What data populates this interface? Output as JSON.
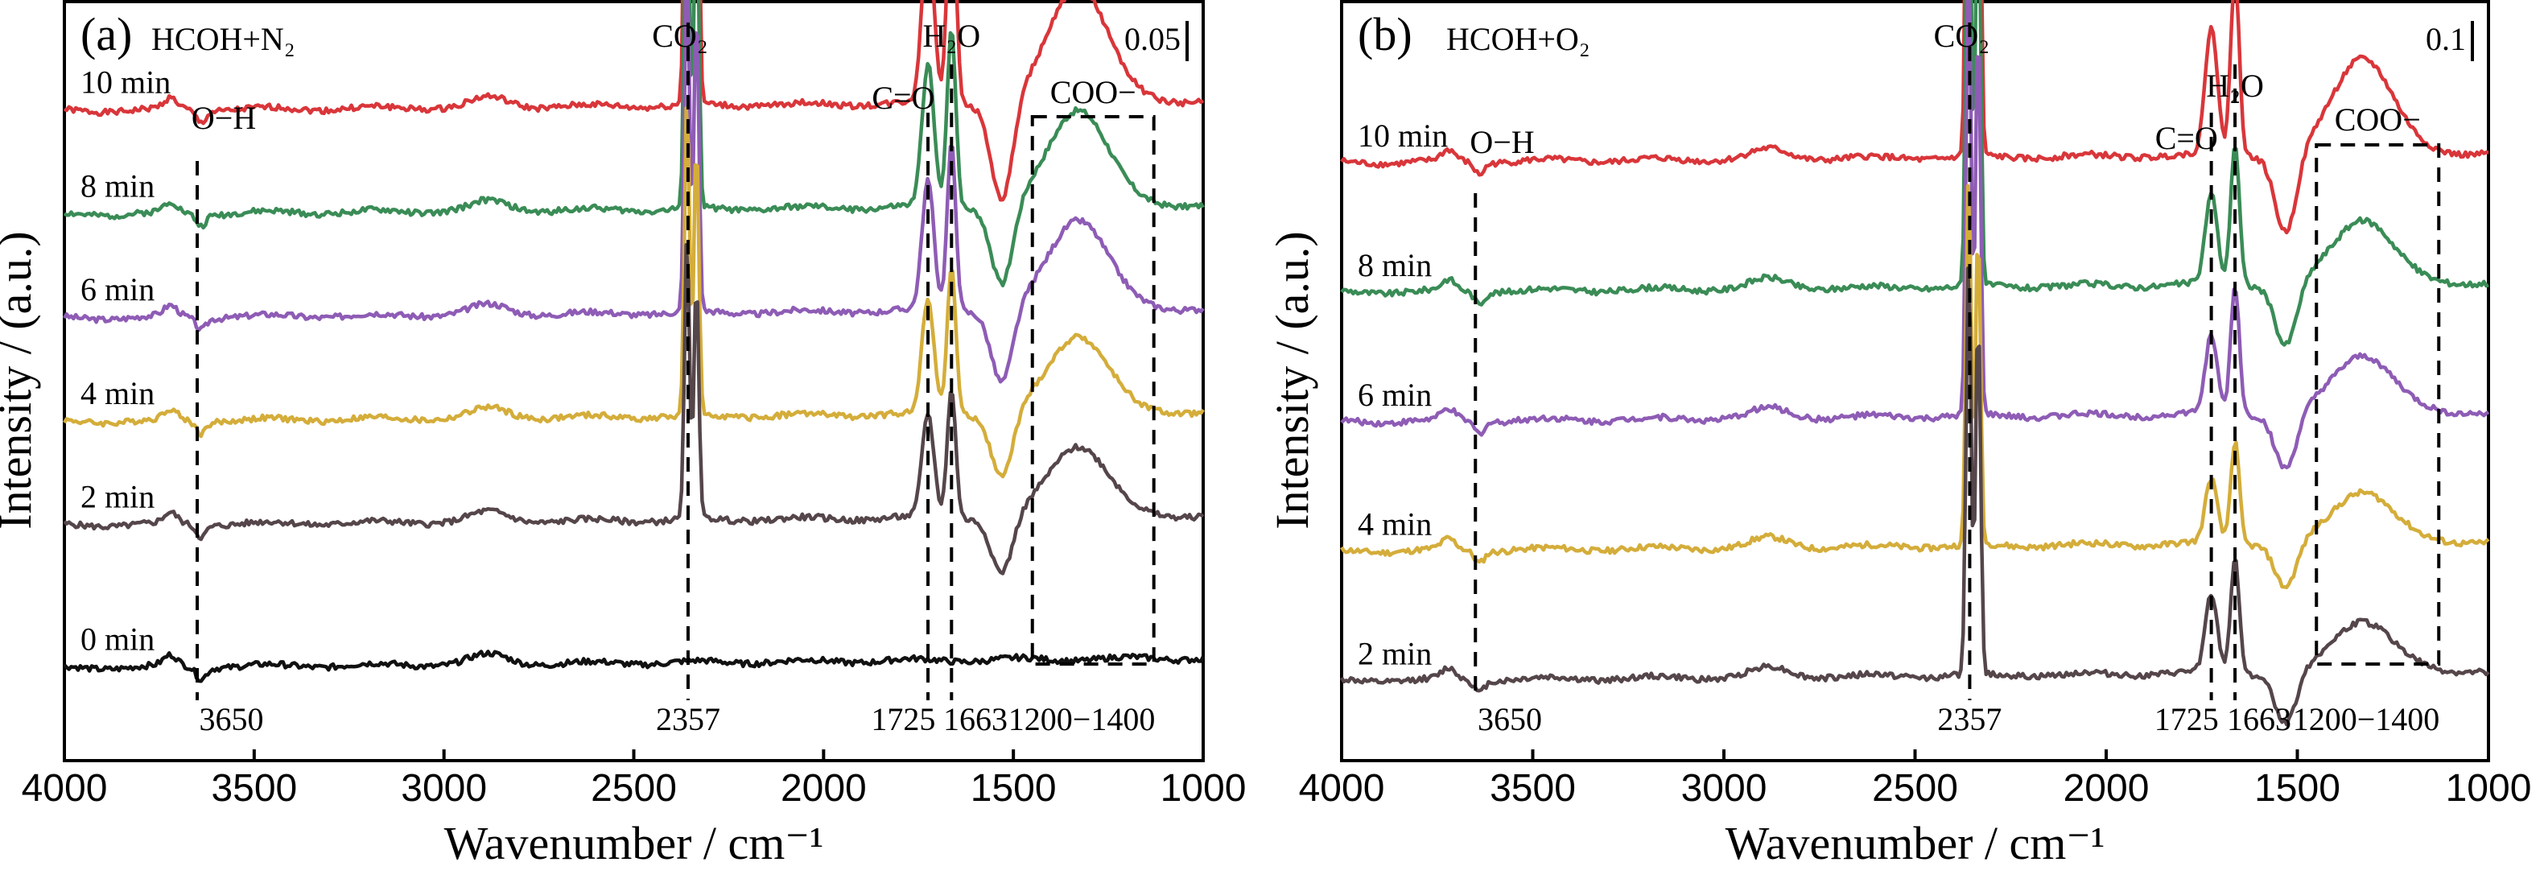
{
  "chart_data": [
    {
      "type": "line",
      "panel_label": "(a)",
      "condition": "HCOH+N₂",
      "scale_bar": "0.05",
      "xlabel": "Wavenumber / cm⁻¹",
      "ylabel": "Intensity / (a.u.)",
      "xlim": [
        4000,
        1000
      ],
      "x_reversed": true,
      "xticks": [
        "4000",
        "3500",
        "3000",
        "2500",
        "2000",
        "1500",
        "1000"
      ],
      "series": [
        {
          "name": "10 min",
          "color": "#d9363a",
          "baseline": 96,
          "peaks": {
            "2357": 68,
            "1725": 26,
            "1663": 35,
            "1300": 18
          }
        },
        {
          "name": "8 min",
          "color": "#3a8c56",
          "baseline": 80,
          "peaks": {
            "2357": 60,
            "1725": 22,
            "1663": 28,
            "1300": 15
          }
        },
        {
          "name": "6 min",
          "color": "#8e5cb5",
          "baseline": 64,
          "peaks": {
            "2357": 56,
            "1725": 20,
            "1663": 26,
            "1300": 14
          }
        },
        {
          "name": "4 min",
          "color": "#d4ad3a",
          "baseline": 48,
          "peaks": {
            "2357": 50,
            "1725": 18,
            "1663": 23,
            "1300": 12
          }
        },
        {
          "name": "2 min",
          "color": "#55464a",
          "baseline": 32,
          "peaks": {
            "2357": 44,
            "1725": 16,
            "1663": 20,
            "1300": 11
          }
        },
        {
          "name": "0 min",
          "color": "#111111",
          "baseline": 10,
          "peaks": {
            "2357": 0,
            "1725": 0,
            "1663": 0,
            "1300": 0
          }
        }
      ],
      "annotations": {
        "bands": [
          "O−H",
          "CO₂",
          "C=O",
          "H₂O",
          "COO−"
        ],
        "positions": [
          "3650",
          "2357",
          "1725",
          "1663",
          "1200−1400"
        ]
      }
    },
    {
      "type": "line",
      "panel_label": "(b)",
      "condition": "HCOH+O₂",
      "scale_bar": "0.1",
      "xlabel": "Wavenumber / cm⁻¹",
      "ylabel": "Intensity / (a.u.)",
      "xlim": [
        4000,
        1000
      ],
      "x_reversed": true,
      "xticks": [
        "4000",
        "3500",
        "3000",
        "2500",
        "2000",
        "1500",
        "1000"
      ],
      "series": [
        {
          "name": "10 min",
          "color": "#d9363a",
          "baseline": 88,
          "peaks": {
            "2357": 85,
            "1725": 20,
            "1663": 28,
            "1300": 15
          }
        },
        {
          "name": "8 min",
          "color": "#3a8c56",
          "baseline": 68,
          "peaks": {
            "2357": 80,
            "1725": 14,
            "1663": 22,
            "1300": 10
          }
        },
        {
          "name": "6 min",
          "color": "#8e5cb5",
          "baseline": 48,
          "peaks": {
            "2357": 72,
            "1725": 12,
            "1663": 20,
            "1300": 9
          }
        },
        {
          "name": "4 min",
          "color": "#d4ad3a",
          "baseline": 28,
          "peaks": {
            "2357": 58,
            "1725": 10,
            "1663": 16,
            "1300": 8
          }
        },
        {
          "name": "2 min",
          "color": "#55464a",
          "baseline": 8,
          "peaks": {
            "2357": 66,
            "1725": 12,
            "1663": 18,
            "1300": 8
          }
        }
      ],
      "annotations": {
        "bands": [
          "O−H",
          "CO₂",
          "C=O",
          "H₂O",
          "COO−"
        ],
        "positions": [
          "3650",
          "2357",
          "1725",
          "1663",
          "1200−1400"
        ]
      }
    }
  ]
}
